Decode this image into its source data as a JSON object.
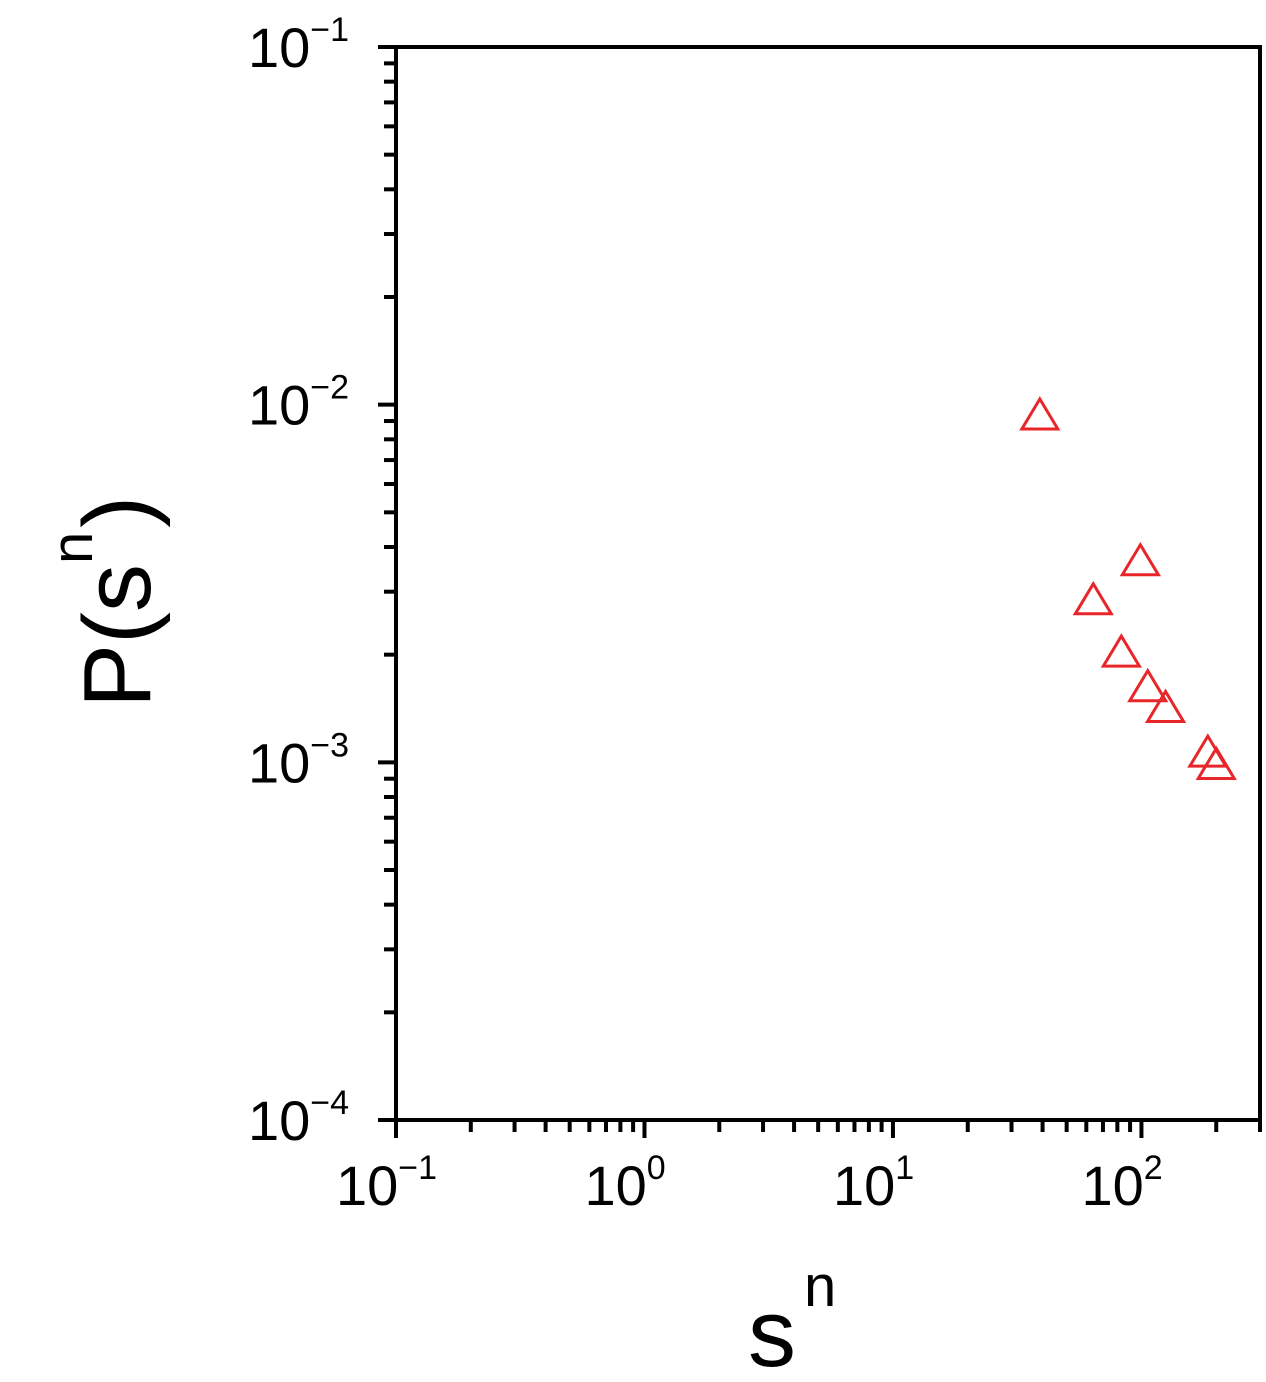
{
  "chart_data": {
    "type": "scatter",
    "xscale": "log",
    "yscale": "log",
    "xlim": [
      0.1,
      300
    ],
    "ylim": [
      0.0001,
      0.1
    ],
    "xlabel": {
      "main": "s",
      "sup": "n"
    },
    "ylabel": {
      "main": "P(s",
      "sup": "n",
      "end": ")"
    },
    "x_ticks": [
      {
        "value": 0.1,
        "base": "10",
        "exp": "−1"
      },
      {
        "value": 1,
        "base": "10",
        "exp": "0"
      },
      {
        "value": 10,
        "base": "10",
        "exp": "1"
      },
      {
        "value": 100,
        "base": "10",
        "exp": "2"
      }
    ],
    "y_ticks": [
      {
        "value": 0.1,
        "base": "10",
        "exp": "−1"
      },
      {
        "value": 0.01,
        "base": "10",
        "exp": "−2"
      },
      {
        "value": 0.001,
        "base": "10",
        "exp": "−3"
      },
      {
        "value": 0.0001,
        "base": "10",
        "exp": "−4"
      }
    ],
    "grid": false,
    "series": [
      {
        "marker": "open-triangle",
        "color": "#e8262a",
        "points": [
          {
            "x": 39,
            "y": 0.0092
          },
          {
            "x": 99,
            "y": 0.0036
          },
          {
            "x": 64,
            "y": 0.0028
          },
          {
            "x": 83,
            "y": 0.002
          },
          {
            "x": 106,
            "y": 0.0016
          },
          {
            "x": 125,
            "y": 0.0014
          },
          {
            "x": 185,
            "y": 0.00105
          },
          {
            "x": 200,
            "y": 0.00097
          }
        ]
      }
    ]
  }
}
